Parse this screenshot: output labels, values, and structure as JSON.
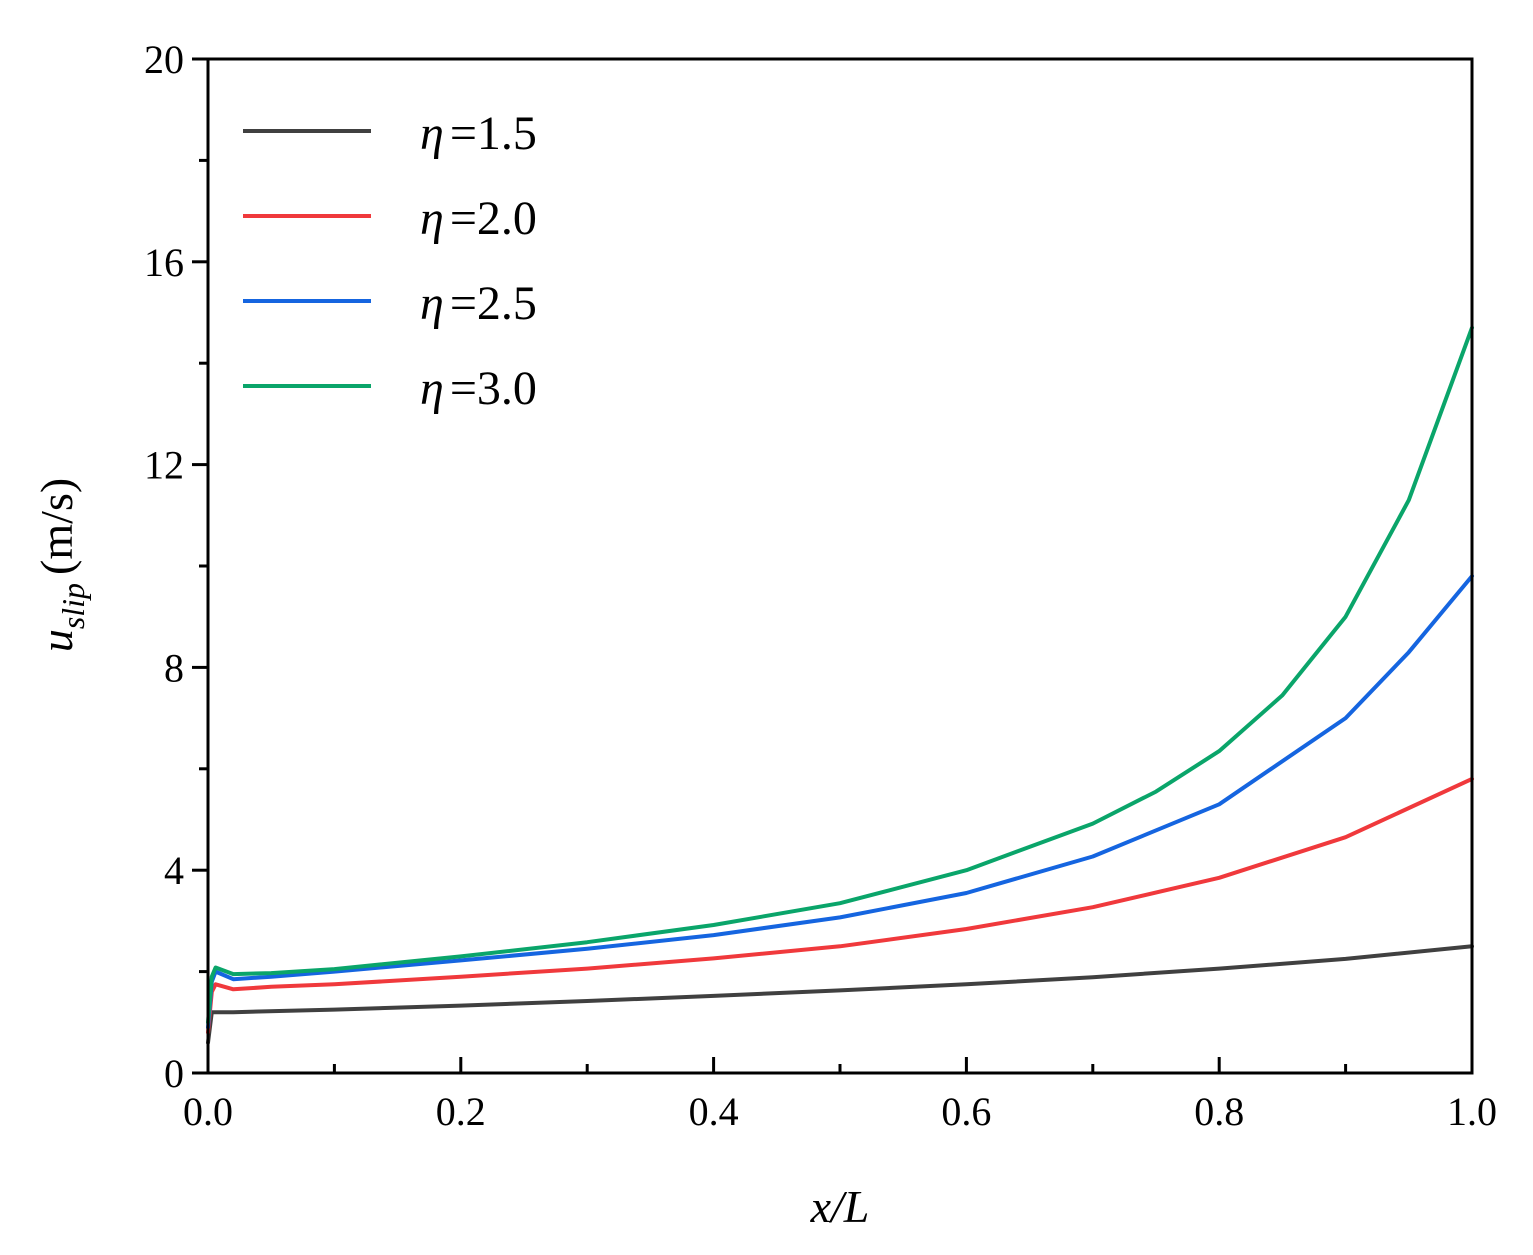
{
  "chart_data": {
    "type": "line",
    "xlabel": "x/L",
    "ylabel": {
      "var": "u",
      "sub": "slip",
      "unit": "(m/s)"
    },
    "xlim": [
      0.0,
      1.0
    ],
    "ylim": [
      0,
      20
    ],
    "x_ticks": [
      0.0,
      0.2,
      0.4,
      0.6,
      0.8,
      1.0
    ],
    "x_tick_labels": [
      "0.0",
      "0.2",
      "0.4",
      "0.6",
      "0.8",
      "1.0"
    ],
    "y_ticks": [
      0,
      4,
      8,
      12,
      16,
      20
    ],
    "y_tick_labels": [
      "0",
      "4",
      "8",
      "12",
      "16",
      "20"
    ],
    "grid": false,
    "legend_position": "top-left",
    "series": [
      {
        "name": "η =1.5",
        "legend_symbol": "η",
        "legend_value": "=1.5",
        "color": "#404040",
        "x": [
          0.0,
          0.003,
          0.006,
          0.02,
          0.1,
          0.2,
          0.3,
          0.4,
          0.5,
          0.6,
          0.7,
          0.8,
          0.9,
          1.0
        ],
        "y": [
          0.6,
          1.2,
          1.2,
          1.2,
          1.25,
          1.33,
          1.42,
          1.52,
          1.63,
          1.75,
          1.89,
          2.06,
          2.25,
          2.5
        ]
      },
      {
        "name": "η =2.0",
        "legend_symbol": "η",
        "legend_value": "=2.0",
        "color": "#f0393c",
        "x": [
          0.0,
          0.003,
          0.006,
          0.02,
          0.05,
          0.1,
          0.2,
          0.3,
          0.4,
          0.5,
          0.6,
          0.7,
          0.8,
          0.9,
          1.0
        ],
        "y": [
          0.8,
          1.6,
          1.75,
          1.65,
          1.7,
          1.75,
          1.9,
          2.06,
          2.26,
          2.5,
          2.84,
          3.27,
          3.85,
          4.65,
          5.8
        ]
      },
      {
        "name": "η =2.5",
        "legend_symbol": "η",
        "legend_value": "=2.5",
        "color": "#1565e0",
        "x": [
          0.0,
          0.003,
          0.006,
          0.02,
          0.05,
          0.1,
          0.2,
          0.3,
          0.4,
          0.5,
          0.6,
          0.7,
          0.8,
          0.9,
          0.95,
          1.0
        ],
        "y": [
          0.9,
          1.8,
          2.0,
          1.85,
          1.9,
          2.0,
          2.22,
          2.45,
          2.72,
          3.07,
          3.55,
          4.27,
          5.3,
          7.0,
          8.3,
          9.8
        ]
      },
      {
        "name": "η =3.0",
        "legend_symbol": "η",
        "legend_value": "=3.0",
        "color": "#0aa56a",
        "x": [
          0.0,
          0.003,
          0.006,
          0.02,
          0.05,
          0.1,
          0.2,
          0.3,
          0.4,
          0.5,
          0.6,
          0.7,
          0.75,
          0.8,
          0.85,
          0.9,
          0.95,
          1.0
        ],
        "y": [
          1.0,
          1.9,
          2.08,
          1.95,
          1.97,
          2.05,
          2.3,
          2.58,
          2.92,
          3.35,
          4.0,
          4.92,
          5.55,
          6.35,
          7.45,
          9.0,
          11.3,
          14.7
        ]
      }
    ]
  }
}
